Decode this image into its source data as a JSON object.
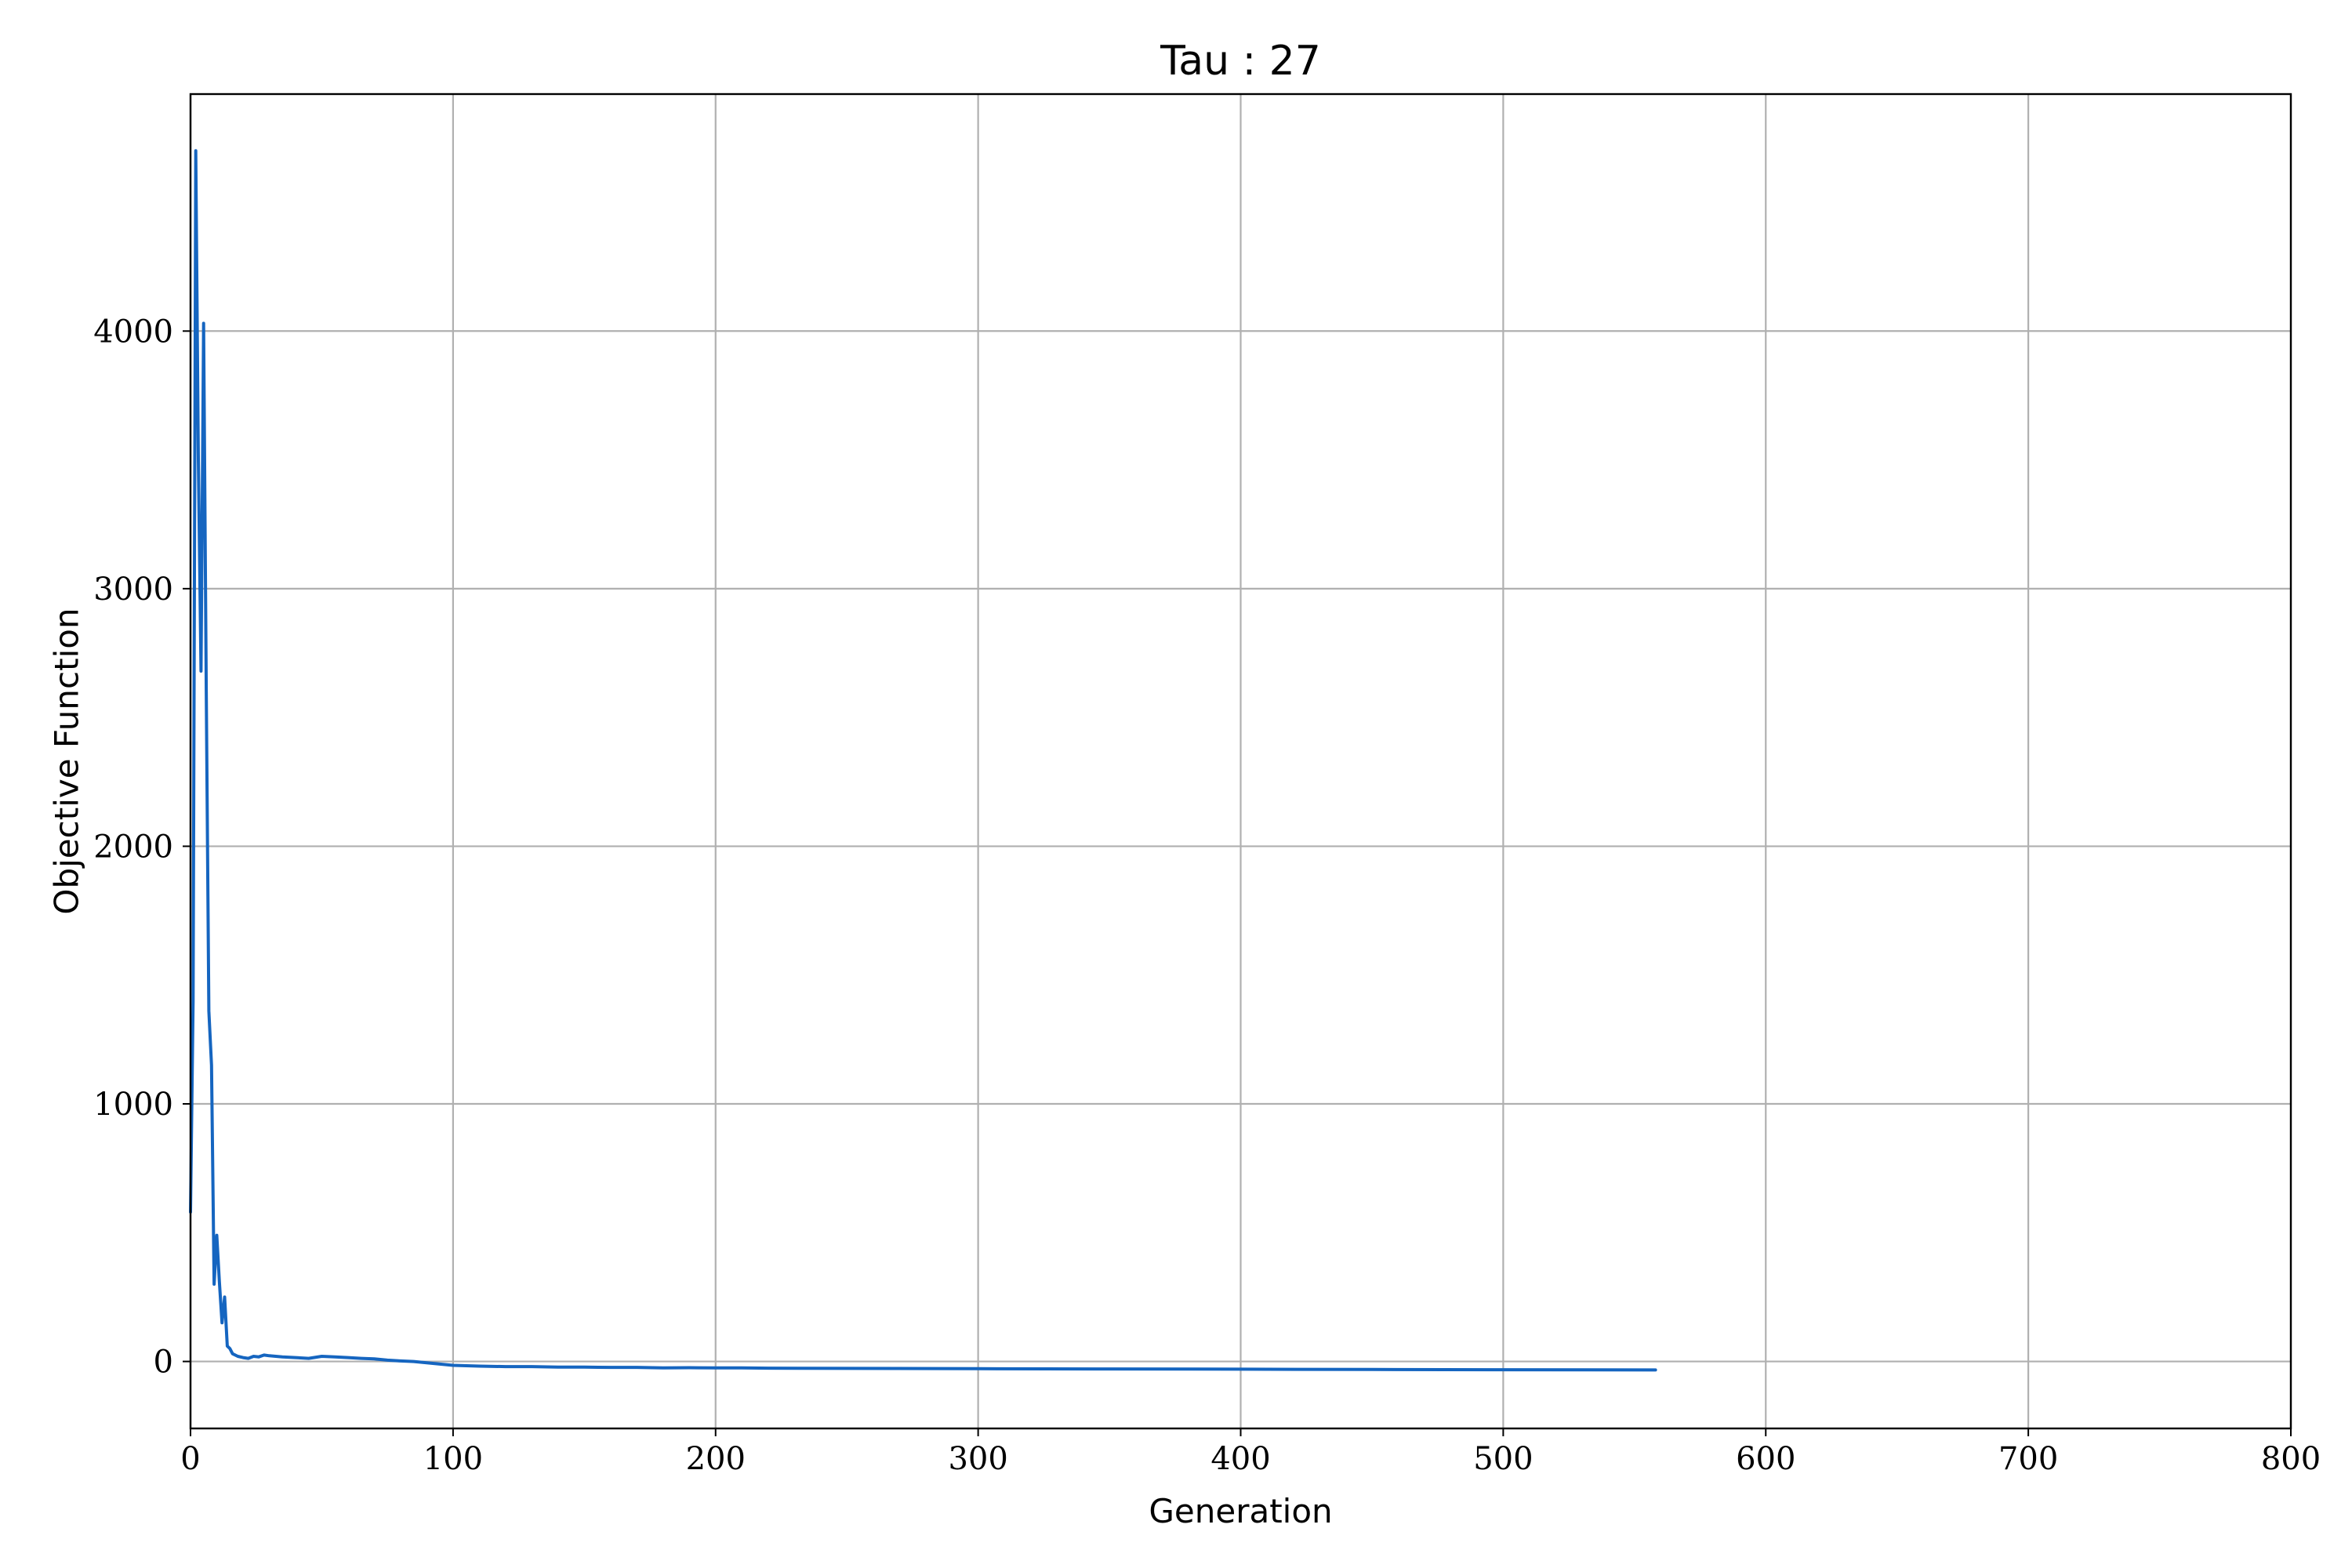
{
  "chart_data": {
    "type": "line",
    "title": "Tau : 27",
    "xlabel": "Generation",
    "ylabel": "Objective Function",
    "xlim": [
      0,
      800
    ],
    "ylim": [
      -260,
      4920
    ],
    "xticks": [
      0,
      100,
      200,
      300,
      400,
      500,
      600,
      700,
      800
    ],
    "yticks": [
      0,
      1000,
      2000,
      3000,
      4000
    ],
    "xtick_labels": [
      "0",
      "100",
      "200",
      "300",
      "400",
      "500",
      "600",
      "700",
      "800"
    ],
    "ytick_labels": [
      "0",
      "1000",
      "2000",
      "3000",
      "4000"
    ],
    "grid": true,
    "legend": "none",
    "series": [
      {
        "color": "#1565c0",
        "x": [
          0,
          1,
          2,
          3,
          4,
          5,
          6,
          7,
          8,
          9,
          10,
          11,
          12,
          13,
          14,
          15,
          16,
          18,
          20,
          22,
          24,
          26,
          28,
          30,
          35,
          40,
          45,
          50,
          55,
          60,
          65,
          70,
          75,
          80,
          85,
          90,
          95,
          100,
          110,
          120,
          130,
          140,
          150,
          160,
          170,
          180,
          190,
          200,
          210,
          220,
          250,
          300,
          350,
          400,
          450,
          500,
          558
        ],
        "y": [
          580,
          1400,
          4700,
          3500,
          2680,
          4030,
          2600,
          1360,
          1150,
          300,
          490,
          310,
          150,
          250,
          60,
          50,
          30,
          20,
          15,
          12,
          20,
          18,
          25,
          22,
          18,
          15,
          12,
          20,
          18,
          15,
          12,
          10,
          5,
          2,
          0,
          -5,
          -10,
          -15,
          -18,
          -20,
          -20,
          -22,
          -22,
          -23,
          -23,
          -25,
          -24,
          -25,
          -25,
          -26,
          -27,
          -28,
          -29,
          -30,
          -31,
          -32,
          -33
        ]
      }
    ]
  }
}
